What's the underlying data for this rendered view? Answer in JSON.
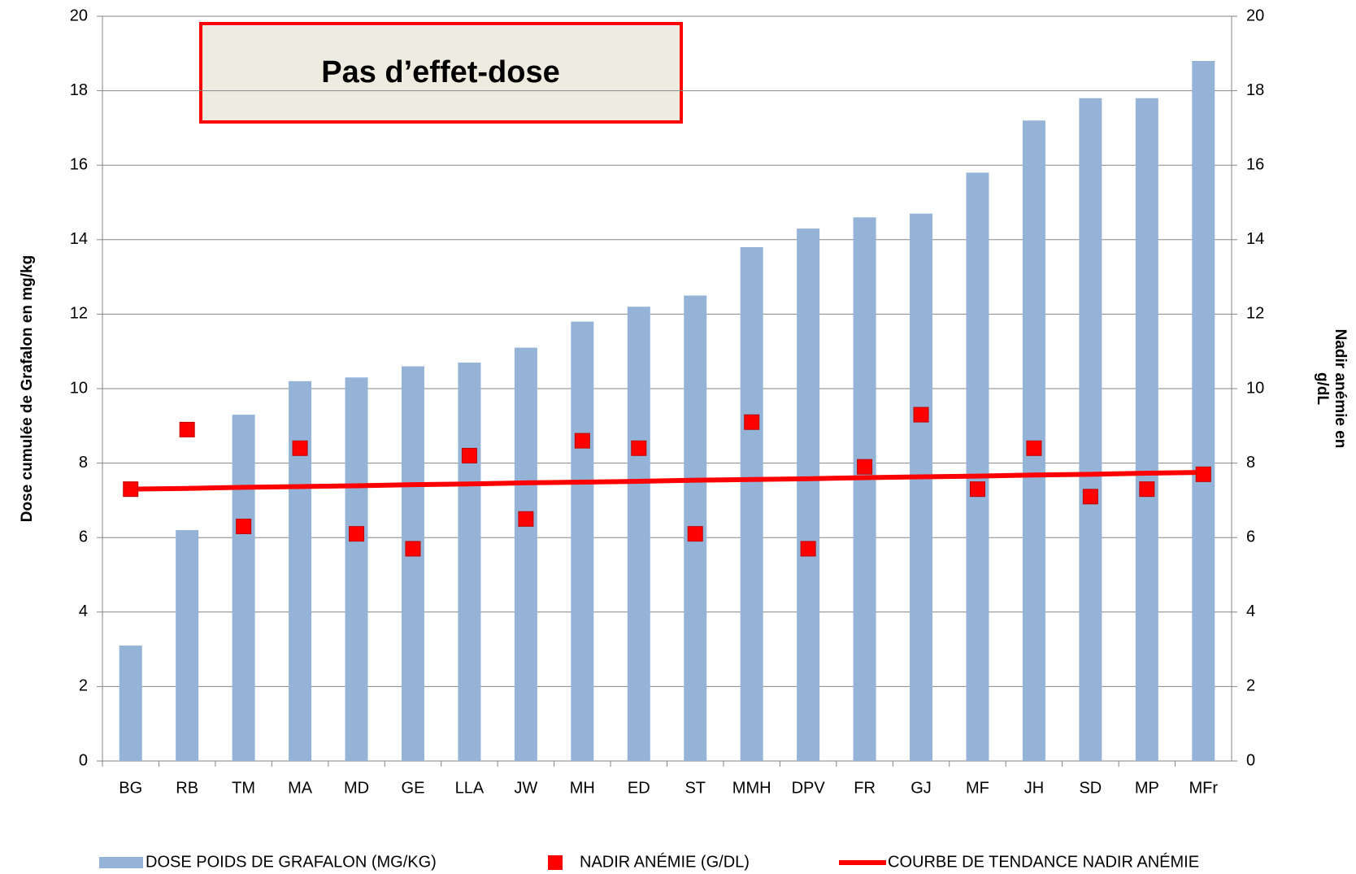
{
  "chart_data": {
    "type": "bar_line",
    "annotation": "Pas d’effet-dose",
    "ylabel": "Dose cumulée de Grafalon en mg/kg",
    "y2label": [
      "Nadir anémie en",
      "g/dL"
    ],
    "categories": [
      "BG",
      "RB",
      "TM",
      "MA",
      "MD",
      "GE",
      "LLA",
      "JW",
      "MH",
      "ED",
      "ST",
      "MMH",
      "DPV",
      "FR",
      "GJ",
      "MF",
      "JH",
      "SD",
      "MP",
      "MFr"
    ],
    "series": [
      {
        "name": "DOSE POIDS DE GRAFALON (MG/KG)",
        "kind": "bar",
        "color": "#95b3d7",
        "values": [
          3.1,
          6.2,
          9.3,
          10.2,
          10.3,
          10.6,
          10.7,
          11.1,
          11.8,
          12.2,
          12.5,
          13.8,
          14.3,
          14.6,
          14.7,
          15.8,
          17.2,
          17.8,
          17.8,
          18.8
        ]
      },
      {
        "name": "NADIR ANÉMIE (G/DL)",
        "kind": "marker",
        "axis": "y2",
        "color": "#ff0000",
        "values": [
          7.3,
          8.9,
          6.3,
          8.4,
          6.1,
          5.7,
          8.2,
          6.5,
          8.6,
          8.4,
          6.1,
          9.1,
          5.7,
          7.9,
          9.3,
          7.3,
          8.4,
          7.1,
          7.3,
          7.7
        ]
      },
      {
        "name": "COURBE DE TENDANCE NADIR ANÉMIE",
        "kind": "line",
        "axis": "y2",
        "color": "#ff0000",
        "values": [
          7.3,
          7.32,
          7.35,
          7.37,
          7.39,
          7.42,
          7.44,
          7.47,
          7.49,
          7.51,
          7.54,
          7.56,
          7.58,
          7.61,
          7.63,
          7.65,
          7.68,
          7.7,
          7.73,
          7.75
        ]
      }
    ],
    "ylim": [
      0,
      20
    ],
    "yticks": [
      0,
      2,
      4,
      6,
      8,
      10,
      12,
      14,
      16,
      18,
      20
    ],
    "y2lim": [
      0,
      20
    ],
    "y2ticks": [
      0,
      2,
      4,
      6,
      8,
      10,
      12,
      14,
      16,
      18,
      20
    ],
    "grid": true,
    "legend": "bottom"
  }
}
